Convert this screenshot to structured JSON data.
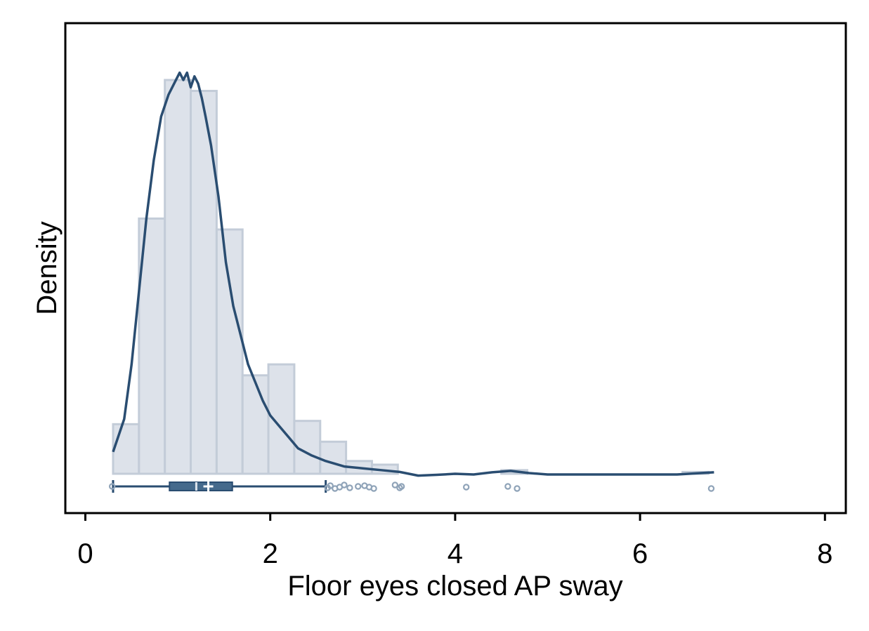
{
  "chart_data": {
    "type": "histogram",
    "xlabel": "Floor eyes closed AP sway",
    "ylabel": "Density",
    "xlim": [
      -0.2,
      8.3
    ],
    "x_ticks": [
      0,
      2,
      4,
      6,
      8
    ],
    "y_ticks_shown": false,
    "grid": false,
    "legend": "none",
    "colors": {
      "bar_fill": "#dde2ea",
      "bar_stroke": "#c3ccd8",
      "density_line": "#2a4d71",
      "box": "#2a4d71",
      "outlier": "#8fa3b8",
      "frame": "#000000"
    },
    "histogram": {
      "bin_edges": [
        0.3,
        0.58,
        0.86,
        1.14,
        1.42,
        1.7,
        1.98,
        2.26,
        2.54,
        2.82,
        3.1,
        3.38,
        3.66,
        3.94,
        4.22,
        4.5,
        4.78,
        5.06,
        5.34,
        5.62,
        5.9,
        6.18,
        6.46,
        6.74,
        7.02
      ],
      "density": [
        0.136,
        0.7,
        1.08,
        1.05,
        0.67,
        0.27,
        0.3,
        0.145,
        0.088,
        0.035,
        0.025,
        0,
        0,
        0,
        0,
        0.01,
        0,
        0,
        0,
        0,
        0,
        0,
        0.005,
        0
      ],
      "y_max": 1.18
    },
    "density_curve": {
      "x": [
        0.3,
        0.42,
        0.5,
        0.58,
        0.66,
        0.74,
        0.82,
        0.9,
        0.98,
        1.02,
        1.06,
        1.1,
        1.14,
        1.18,
        1.22,
        1.26,
        1.3,
        1.36,
        1.44,
        1.52,
        1.6,
        1.68,
        1.76,
        1.84,
        1.92,
        2.0,
        2.1,
        2.2,
        2.3,
        2.45,
        2.6,
        2.8,
        3.0,
        3.2,
        3.4,
        3.6,
        3.8,
        4.0,
        4.2,
        4.4,
        4.6,
        4.8,
        5.0,
        5.4,
        6.0,
        6.4,
        6.8
      ],
      "y": [
        0.06,
        0.15,
        0.3,
        0.5,
        0.7,
        0.86,
        0.98,
        1.04,
        1.08,
        1.1,
        1.08,
        1.1,
        1.06,
        1.09,
        1.07,
        1.03,
        0.98,
        0.9,
        0.76,
        0.58,
        0.46,
        0.38,
        0.3,
        0.25,
        0.2,
        0.16,
        0.13,
        0.1,
        0.07,
        0.05,
        0.035,
        0.02,
        0.015,
        0.01,
        0.005,
        -0.005,
        -0.003,
        0.0,
        -0.002,
        0.004,
        0.008,
        0.002,
        -0.002,
        -0.002,
        -0.002,
        -0.002,
        0.004
      ]
    },
    "boxplot": {
      "whisker_low": 0.3,
      "q1": 0.91,
      "median": 1.2,
      "mean": 1.33,
      "q3": 1.59,
      "whisker_high": 2.6
    },
    "points": [
      0.29,
      2.62,
      2.65,
      2.7,
      2.75,
      2.8,
      2.86,
      2.95,
      3.02,
      3.07,
      3.12,
      3.35,
      3.4,
      3.42,
      4.12,
      4.57,
      4.67,
      6.77
    ]
  }
}
